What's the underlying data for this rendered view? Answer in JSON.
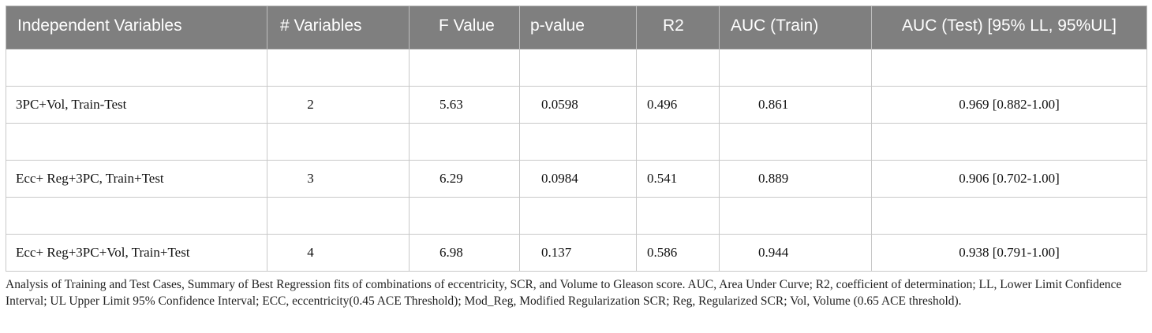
{
  "table": {
    "headers": [
      "Independent Variables",
      "# Variables",
      "F Value",
      "p-value",
      "R2",
      "AUC (Train)",
      "AUC (Test) [95% LL, 95%UL]"
    ],
    "rows": [
      [
        "3PC+Vol, Train-Test",
        "2",
        "5.63",
        "0.0598",
        "0.496",
        "0.861",
        "0.969 [0.882-1.00]"
      ],
      [
        "Ecc+ Reg+3PC, Train+Test",
        "3",
        "6.29",
        "0.0984",
        "0.541",
        "0.889",
        "0.906 [0.702-1.00]"
      ],
      [
        "Ecc+ Reg+3PC+Vol, Train+Test",
        "4",
        "6.98",
        "0.137",
        "0.586",
        "0.944",
        "0.938 [0.791-1.00]"
      ]
    ]
  },
  "caption": "Analysis of Training and Test Cases, Summary of Best Regression fits of combinations of eccentricity, SCR, and Volume to Gleason score. AUC, Area Under Curve; R2, coefficient of determination; LL, Lower Limit Confidence Interval; UL Upper Limit 95% Confidence Interval; ECC, eccentricity(0.45 ACE Threshold); Mod_Reg, Modified Regularization SCR; Reg, Regularized SCR; Vol, Volume (0.65 ACE threshold).",
  "colors": {
    "header_bg": "#7f7f7f",
    "header_text": "#ffffff",
    "grid": "#c8c8c8"
  }
}
